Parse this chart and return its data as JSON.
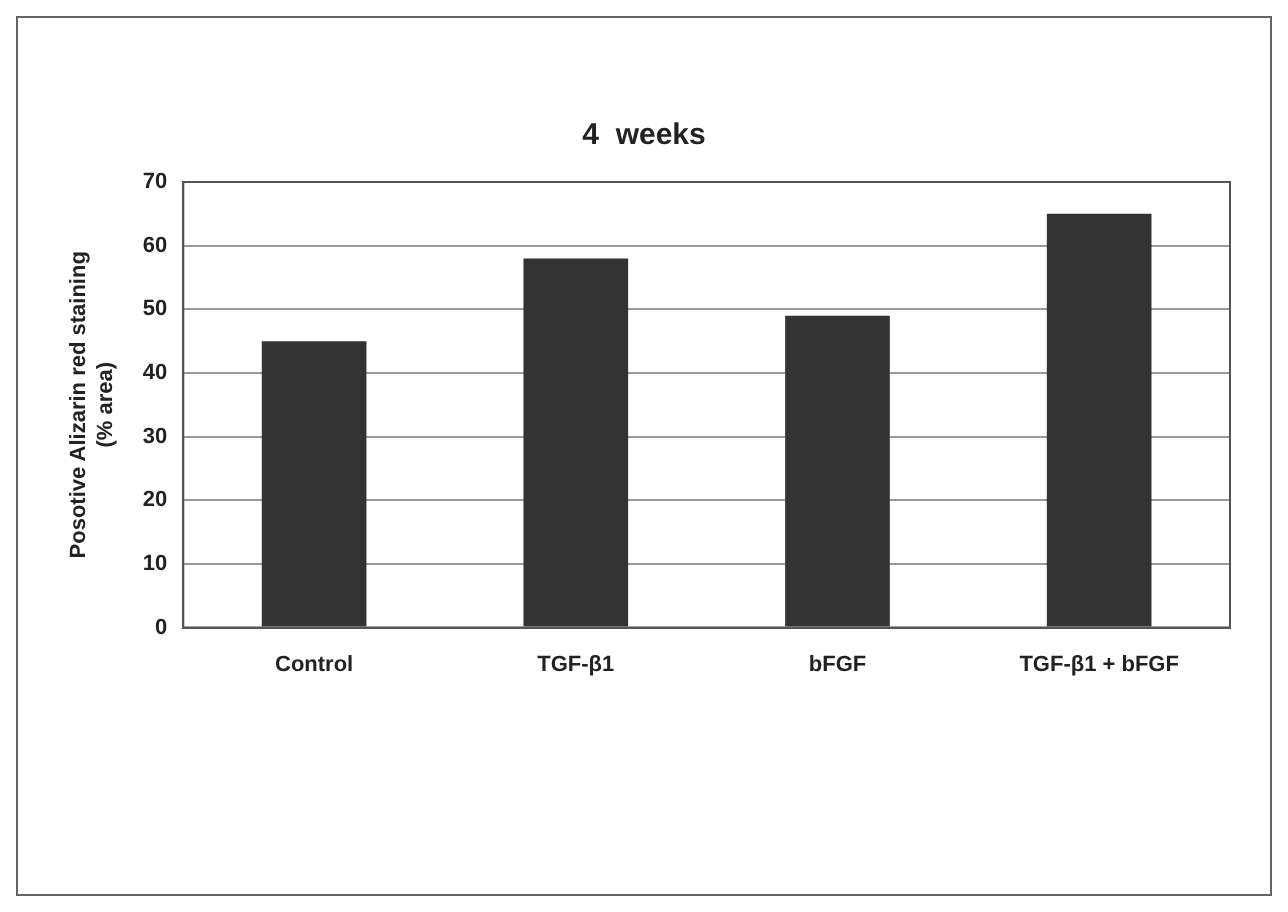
{
  "chart_data": {
    "type": "bar",
    "title": "4  weeks",
    "ylabel": "Posotive Alizarin red staining\n(% area)",
    "categories": [
      "Control",
      "TGF-β1",
      "bFGF",
      "TGF-β1 + bFGF"
    ],
    "values": [
      45,
      58,
      49,
      65
    ],
    "color": "#333333",
    "ylim": [
      0,
      70
    ],
    "yticks": [
      0,
      10,
      20,
      30,
      40,
      50,
      60,
      70
    ],
    "grid": "y",
    "legend": false
  }
}
